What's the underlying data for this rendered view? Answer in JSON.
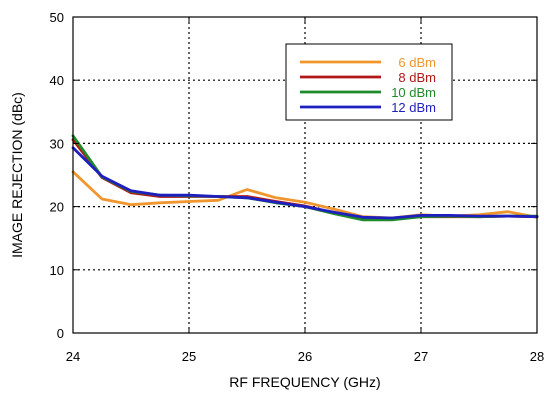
{
  "chart_data": {
    "type": "line",
    "title": "",
    "xlabel": "RF FREQUENCY (GHz)",
    "ylabel": "IMAGE REJECTION (dBc)",
    "xlim": [
      24,
      28
    ],
    "ylim": [
      0,
      50
    ],
    "xticks": [
      24,
      25,
      26,
      27,
      28
    ],
    "yticks": [
      0,
      10,
      20,
      30,
      40,
      50
    ],
    "grid": true,
    "grid_style": "dotted",
    "legend_position": "top-right",
    "x": [
      24,
      24.25,
      24.5,
      24.75,
      25,
      25.25,
      25.5,
      25.75,
      26,
      26.25,
      26.5,
      26.75,
      27,
      27.25,
      27.5,
      27.75,
      28
    ],
    "series": [
      {
        "name": "6 dBm",
        "color": "#f0962e",
        "values": [
          25.5,
          21.2,
          20.3,
          20.6,
          20.8,
          21.0,
          22.7,
          21.4,
          20.7,
          19.6,
          18.4,
          18.2,
          18.7,
          18.5,
          18.7,
          19.2,
          18.3
        ]
      },
      {
        "name": "8 dBm",
        "color": "#b01818",
        "values": [
          30.6,
          24.6,
          22.2,
          21.6,
          21.6,
          21.6,
          21.6,
          20.8,
          20.1,
          19.0,
          18.2,
          18.1,
          18.4,
          18.4,
          18.4,
          18.5,
          18.4
        ]
      },
      {
        "name": "10 dBm",
        "color": "#1e8a2a",
        "values": [
          31.2,
          24.7,
          22.4,
          21.8,
          21.7,
          21.6,
          21.4,
          20.6,
          20.0,
          18.9,
          17.9,
          17.9,
          18.4,
          18.5,
          18.4,
          18.5,
          18.5
        ]
      },
      {
        "name": "12 dBm",
        "color": "#1f1fbf",
        "values": [
          29.3,
          24.8,
          22.5,
          21.8,
          21.8,
          21.6,
          21.4,
          20.7,
          20.0,
          19.1,
          18.3,
          18.2,
          18.6,
          18.6,
          18.5,
          18.5,
          18.4
        ]
      }
    ]
  }
}
